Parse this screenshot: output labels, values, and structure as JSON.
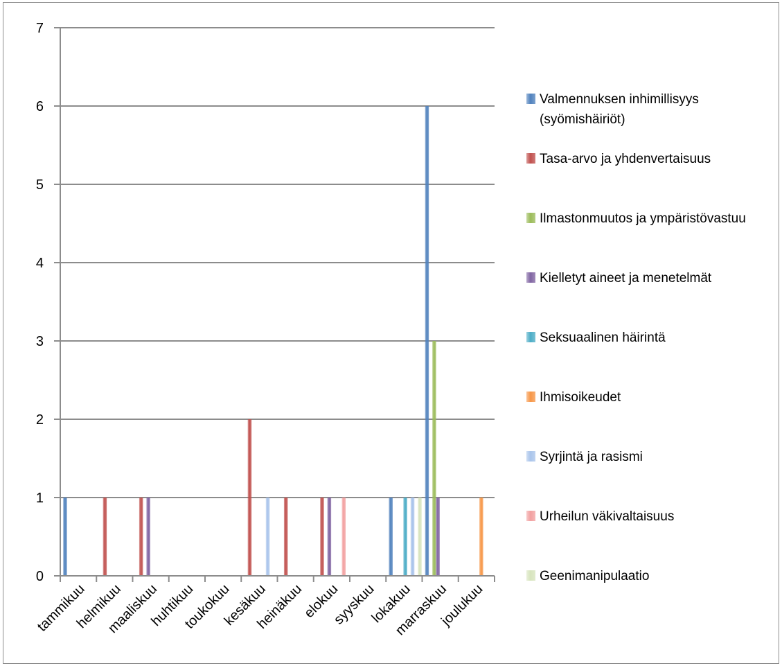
{
  "chart_data": {
    "type": "bar",
    "title": "",
    "xlabel": "",
    "ylabel": "",
    "ylim": [
      0,
      7
    ],
    "yticks": [
      0,
      1,
      2,
      3,
      4,
      5,
      6,
      7
    ],
    "grid": true,
    "legend_position": "right",
    "categories": [
      "tammikuu",
      "helmikuu",
      "maaliskuu",
      "huhtikuu",
      "toukokuu",
      "kesäkuu",
      "heinäkuu",
      "elokuu",
      "syyskuu",
      "lokakuu",
      "marraskuu",
      "joulukuu"
    ],
    "series": [
      {
        "name": "Valmennuksen inhimillisyys (syömishäiriöt)",
        "color": "#4f81bd",
        "values": [
          1,
          0,
          0,
          0,
          0,
          0,
          0,
          0,
          0,
          1,
          6,
          0
        ]
      },
      {
        "name": "Tasa-arvo ja yhdenvertaisuus",
        "color": "#c0504d",
        "values": [
          0,
          1,
          1,
          0,
          0,
          2,
          1,
          1,
          0,
          0,
          0,
          0
        ]
      },
      {
        "name": "Ilmastonmuutos ja ympäristövastuu",
        "color": "#9bbb59",
        "values": [
          0,
          0,
          0,
          0,
          0,
          0,
          0,
          0,
          0,
          0,
          3,
          0
        ]
      },
      {
        "name": "Kielletyt aineet ja menetelmät",
        "color": "#8064a2",
        "values": [
          0,
          0,
          1,
          0,
          0,
          0,
          0,
          1,
          0,
          0,
          1,
          0
        ]
      },
      {
        "name": "Seksuaalinen häirintä",
        "color": "#4bacc6",
        "values": [
          0,
          0,
          0,
          0,
          0,
          0,
          0,
          0,
          0,
          1,
          0,
          0
        ]
      },
      {
        "name": "Ihmisoikeudet",
        "color": "#f79646",
        "values": [
          0,
          0,
          0,
          0,
          0,
          0,
          0,
          0,
          0,
          0,
          0,
          1
        ]
      },
      {
        "name": "Syrjintä ja rasismi",
        "color": "#a9c4eb",
        "values": [
          0,
          0,
          0,
          0,
          0,
          1,
          0,
          0,
          0,
          1,
          0,
          0
        ]
      },
      {
        "name": "Urheilun väkivaltaisuus",
        "color": "#f2a0a0",
        "values": [
          0,
          0,
          0,
          0,
          0,
          0,
          0,
          1,
          0,
          0,
          0,
          0
        ]
      },
      {
        "name": "Geenimanipulaatio",
        "color": "#d7e4bd",
        "values": [
          0,
          0,
          0,
          0,
          0,
          0,
          0,
          0,
          0,
          1,
          0,
          0
        ]
      }
    ]
  }
}
